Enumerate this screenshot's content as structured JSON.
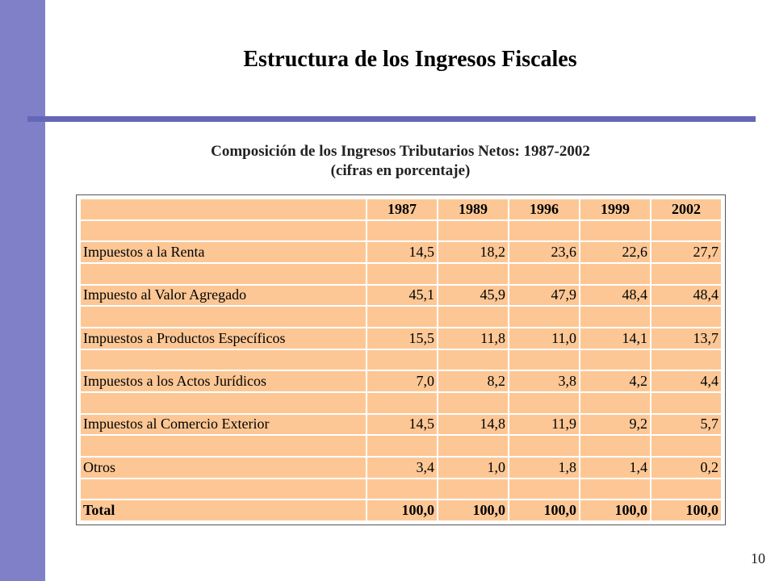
{
  "slide": {
    "title": "Estructura de los Ingresos Fiscales",
    "subtitle_line1": "Composición de los Ingresos Tributarios Netos: 1987-2002",
    "subtitle_line2": "(cifras en porcentaje)",
    "page_number": "10"
  },
  "colors": {
    "sidebar": "#8080c8",
    "rule": "#6666b8",
    "cell_fill": "#fcc795"
  },
  "table": {
    "years": [
      "1987",
      "1989",
      "1996",
      "1999",
      "2002"
    ],
    "rows": [
      {
        "label": "Impuestos a la Renta",
        "values": [
          "14,5",
          "18,2",
          "23,6",
          "22,6",
          "27,7"
        ]
      },
      {
        "label": "Impuesto al Valor Agregado",
        "values": [
          "45,1",
          "45,9",
          "47,9",
          "48,4",
          "48,4"
        ]
      },
      {
        "label": "Impuestos a Productos Específicos",
        "values": [
          "15,5",
          "11,8",
          "11,0",
          "14,1",
          "13,7"
        ]
      },
      {
        "label": "Impuestos a los Actos Jurídicos",
        "values": [
          "7,0",
          "8,2",
          "3,8",
          "4,2",
          "4,4"
        ]
      },
      {
        "label": "Impuestos al Comercio Exterior",
        "values": [
          "14,5",
          "14,8",
          "11,9",
          "9,2",
          "5,7"
        ]
      },
      {
        "label": "Otros",
        "values": [
          "3,4",
          "1,0",
          "1,8",
          "1,4",
          "0,2"
        ]
      }
    ],
    "total": {
      "label": "Total",
      "values": [
        "100,0",
        "100,0",
        "100,0",
        "100,0",
        "100,0"
      ]
    }
  }
}
